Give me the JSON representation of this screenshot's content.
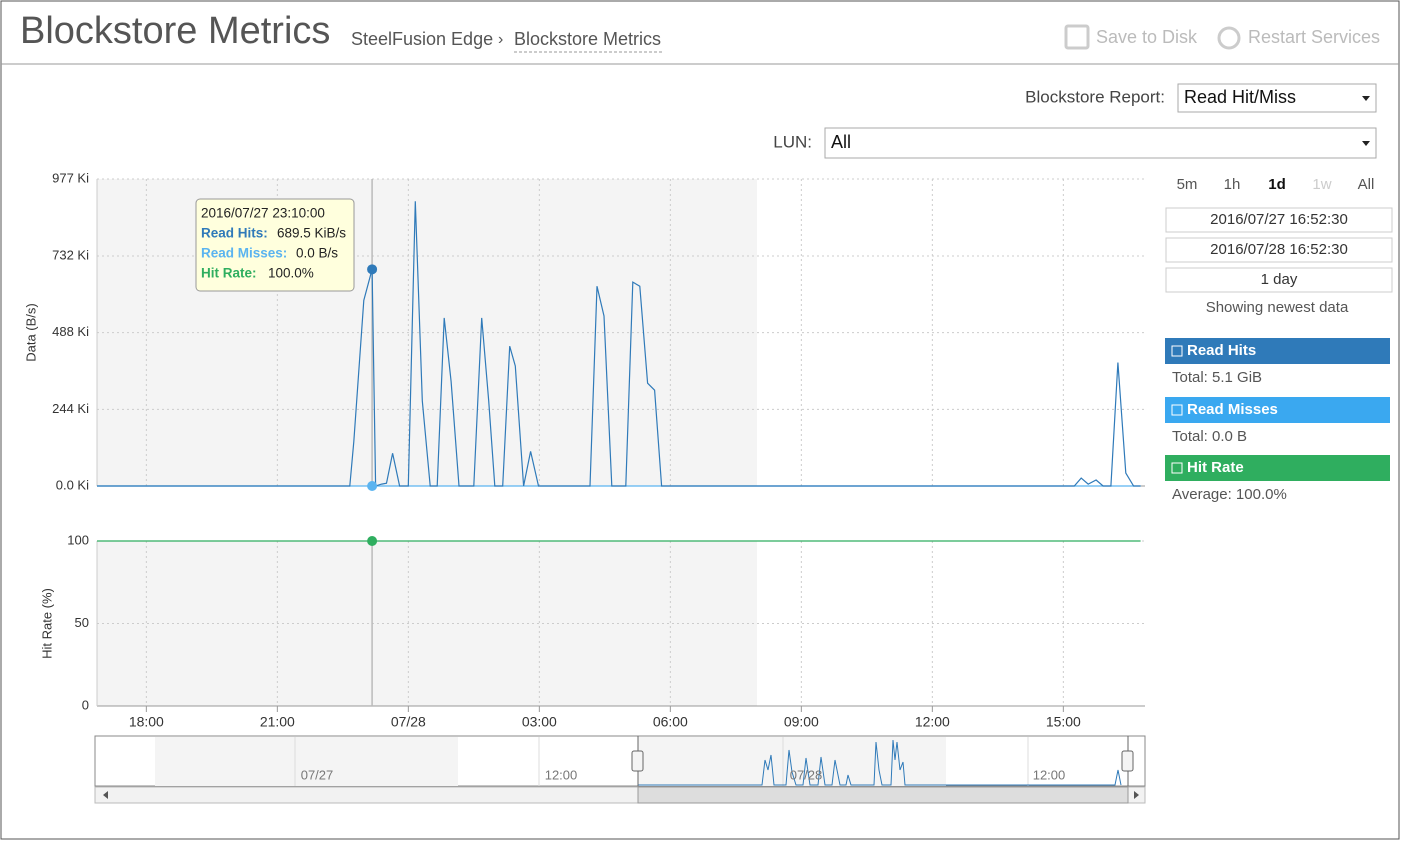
{
  "header": {
    "title": "Blockstore Metrics",
    "breadcrumb": [
      "SteelFusion Edge",
      "Blockstore Metrics"
    ],
    "buttons": [
      "Save to Disk",
      "Restart Services"
    ]
  },
  "controls": {
    "report_label": "Blockstore Report:",
    "report_value": "Read Hit/Miss",
    "lun_label": "LUN:",
    "lun_value": "All"
  },
  "range_buttons": [
    "5m",
    "1h",
    "1d",
    "1w",
    "All"
  ],
  "range": {
    "start": "2016/07/27 16:52:30",
    "end": "2016/07/28 16:52:30",
    "duration": "1 day",
    "status": "Showing newest data"
  },
  "legend_stats": [
    "Total: 5.1 GiB",
    "Total: 0.0 B",
    "Average: 100.0%"
  ],
  "tooltip": {
    "time": "2016/07/27 23:10:00",
    "rows": [
      [
        "Read Hits:",
        "689.5 KiB/s"
      ],
      [
        "Read Misses:",
        "0.0 B/s"
      ],
      [
        "Hit Rate:",
        "100.0%"
      ]
    ]
  },
  "navigator": {
    "labels": [
      "07/27",
      "12:00",
      "07/28",
      "12:00"
    ]
  },
  "chart_data": [
    {
      "type": "line",
      "ylabel": "Data (B/s)",
      "x": [
        16.87,
        22.66,
        22.75,
        22.98,
        23.17,
        23.25,
        23.39,
        23.5,
        23.64,
        23.8,
        24.0,
        24.16,
        24.32,
        24.5,
        24.66,
        24.82,
        24.98,
        25.16,
        25.5,
        25.68,
        25.84,
        25.98,
        26.16,
        26.32,
        26.45,
        26.64,
        26.8,
        26.98,
        28.16,
        28.32,
        28.48,
        28.66,
        28.98,
        29.14,
        29.3,
        29.48,
        29.64,
        29.8,
        39.25,
        39.41,
        39.57,
        39.75,
        39.91,
        40.09,
        40.25,
        40.43,
        40.61,
        40.77
      ],
      "xlim": [
        16.87,
        40.87
      ],
      "xticks": [
        18,
        21,
        24,
        27,
        30,
        33,
        36,
        39
      ],
      "ylim": [
        0,
        977
      ],
      "yticks": [
        {
          "value": 0,
          "label": "0.0 Ki"
        },
        {
          "value": 244,
          "label": "244 Ki"
        },
        {
          "value": 488,
          "label": "488 Ki"
        },
        {
          "value": 732,
          "label": "732 Ki"
        },
        {
          "value": 977,
          "label": "977 Ki"
        }
      ],
      "grid": true,
      "series": [
        {
          "name": "Read Hits",
          "color": "#2f7ab9",
          "values": [
            0,
            0,
            141,
            591,
            689.5,
            0,
            6,
            9,
            104,
            0,
            0,
            906,
            271,
            0,
            0,
            535,
            333,
            0,
            0,
            535,
            271,
            0,
            0,
            445,
            382,
            0,
            110,
            0,
            0,
            636,
            541,
            0,
            0,
            649,
            636,
            327,
            305,
            0,
            0,
            25,
            6,
            19,
            0,
            0,
            393,
            41,
            0,
            0
          ]
        },
        {
          "name": "Read Misses",
          "color": "#5bb4f0",
          "values": [
            0,
            0,
            0,
            0,
            0,
            0,
            0,
            0,
            0,
            0,
            0,
            0,
            0,
            0,
            0,
            0,
            0,
            0,
            0,
            0,
            0,
            0,
            0,
            0,
            0,
            0,
            0,
            0,
            0,
            0,
            0,
            0,
            0,
            0,
            0,
            0,
            0,
            0,
            0,
            0,
            0,
            0,
            0,
            0,
            0,
            0,
            0,
            0
          ]
        }
      ]
    },
    {
      "type": "line",
      "ylabel": "Hit Rate (%)",
      "x": [
        16.87,
        23.17,
        40.77
      ],
      "xlim": [
        16.87,
        40.87
      ],
      "xticks": [
        {
          "value": 18,
          "label": "18:00"
        },
        {
          "value": 21,
          "label": "21:00"
        },
        {
          "value": 24,
          "label": "07/28"
        },
        {
          "value": 27,
          "label": "03:00"
        },
        {
          "value": 30,
          "label": "06:00"
        },
        {
          "value": 33,
          "label": "09:00"
        },
        {
          "value": 36,
          "label": "12:00"
        },
        {
          "value": 39,
          "label": "15:00"
        }
      ],
      "ylim": [
        0,
        100
      ],
      "yticks": [
        0,
        50,
        100
      ],
      "grid": true,
      "series": [
        {
          "name": "Hit Rate",
          "color": "#2fae5f",
          "values": [
            100,
            100,
            100
          ]
        }
      ]
    }
  ]
}
